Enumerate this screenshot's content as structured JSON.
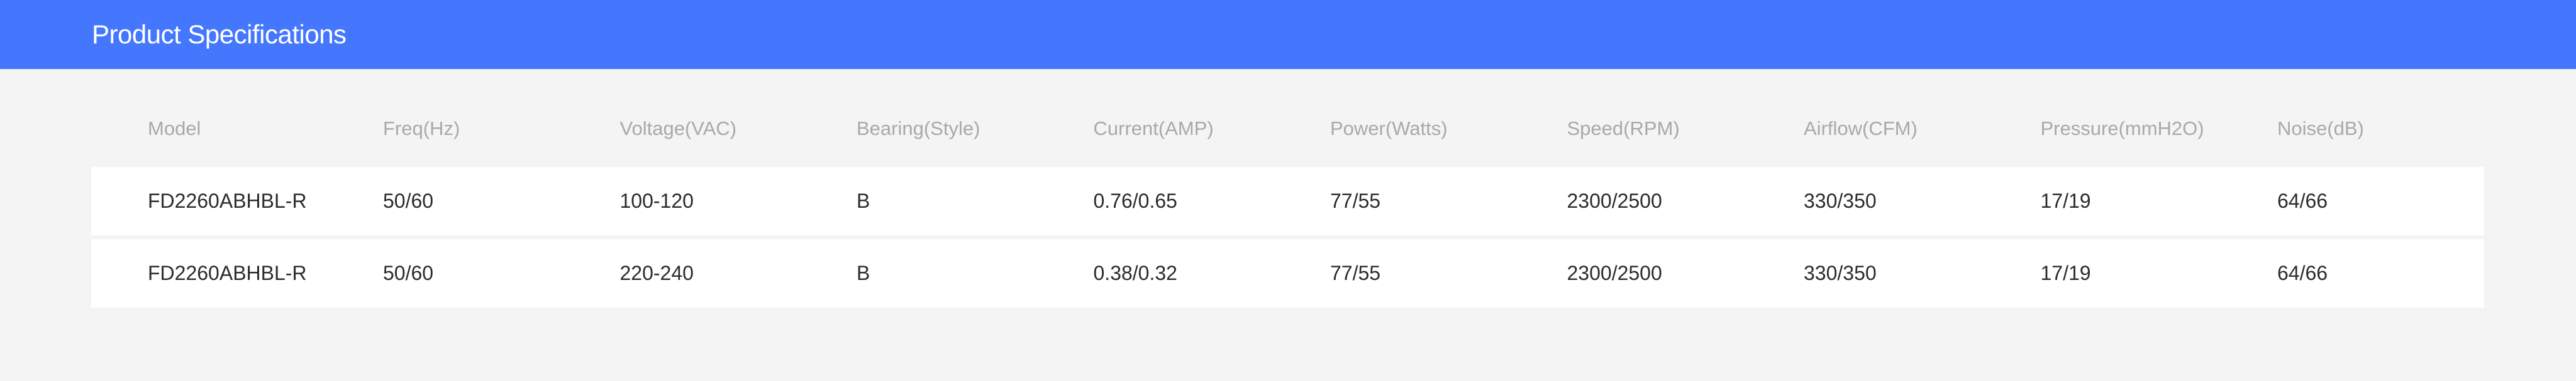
{
  "header": {
    "title": "Product Specifications"
  },
  "colors": {
    "header_bg": "#4577fe",
    "page_bg": "#f3f4f3",
    "row_bg": "#ffffff"
  },
  "table": {
    "columns": [
      "Model",
      "Freq(Hz)",
      "Voltage(VAC)",
      "Bearing(Style)",
      "Current(AMP)",
      "Power(Watts)",
      "Speed(RPM)",
      "Airflow(CFM)",
      "Pressure(mmH2O)",
      "Noise(dB)"
    ],
    "rows": [
      [
        "FD2260ABHBL-R",
        "50/60",
        "100-120",
        "B",
        "0.76/0.65",
        "77/55",
        "2300/2500",
        "330/350",
        "17/19",
        "64/66"
      ],
      [
        "FD2260ABHBL-R",
        "50/60",
        "220-240",
        "B",
        "0.38/0.32",
        "77/55",
        "2300/2500",
        "330/350",
        "17/19",
        "64/66"
      ]
    ]
  }
}
